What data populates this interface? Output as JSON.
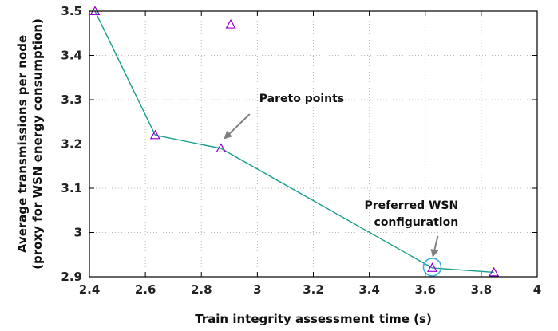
{
  "chart_data": {
    "type": "scatter",
    "title": "",
    "xlabel": "Train integrity assessment time (s)",
    "ylabel_lines": [
      "Average transmissions per node",
      "(proxy for WSN energy consumption)"
    ],
    "xlim": [
      2.4,
      4.0
    ],
    "ylim": [
      2.9,
      3.5
    ],
    "xticks": [
      "2.4",
      "2.6",
      "2.8",
      "3",
      "3.2",
      "3.4",
      "3.6",
      "3.8",
      "4"
    ],
    "yticks": [
      "2.9",
      "3",
      "3.1",
      "3.2",
      "3.3",
      "3.4",
      "3.5"
    ],
    "grid": true,
    "points": [
      {
        "x": 2.42,
        "y": 3.5
      },
      {
        "x": 2.635,
        "y": 3.22
      },
      {
        "x": 2.87,
        "y": 3.19
      },
      {
        "x": 2.905,
        "y": 3.47
      },
      {
        "x": 3.625,
        "y": 2.92
      },
      {
        "x": 3.845,
        "y": 2.91
      }
    ],
    "pareto_front": [
      {
        "x": 2.42,
        "y": 3.5
      },
      {
        "x": 2.635,
        "y": 3.22
      },
      {
        "x": 2.87,
        "y": 3.19
      },
      {
        "x": 3.625,
        "y": 2.92
      },
      {
        "x": 3.845,
        "y": 2.91
      }
    ],
    "highlight": {
      "x": 3.625,
      "y": 2.92
    },
    "annotations": [
      {
        "id": "pareto",
        "text_lines": [
          "Pareto points"
        ],
        "target": {
          "x": 2.87,
          "y": 3.19
        }
      },
      {
        "id": "preferred",
        "text_lines": [
          "Preferred WSN",
          "configuration"
        ],
        "target": {
          "x": 3.625,
          "y": 2.92
        }
      }
    ],
    "colors": {
      "line": "#1a9e8a",
      "marker": "#9400d3",
      "highlight": "#3ab0d8",
      "arrow": "#808080",
      "grid": "#bbbbbb"
    }
  }
}
